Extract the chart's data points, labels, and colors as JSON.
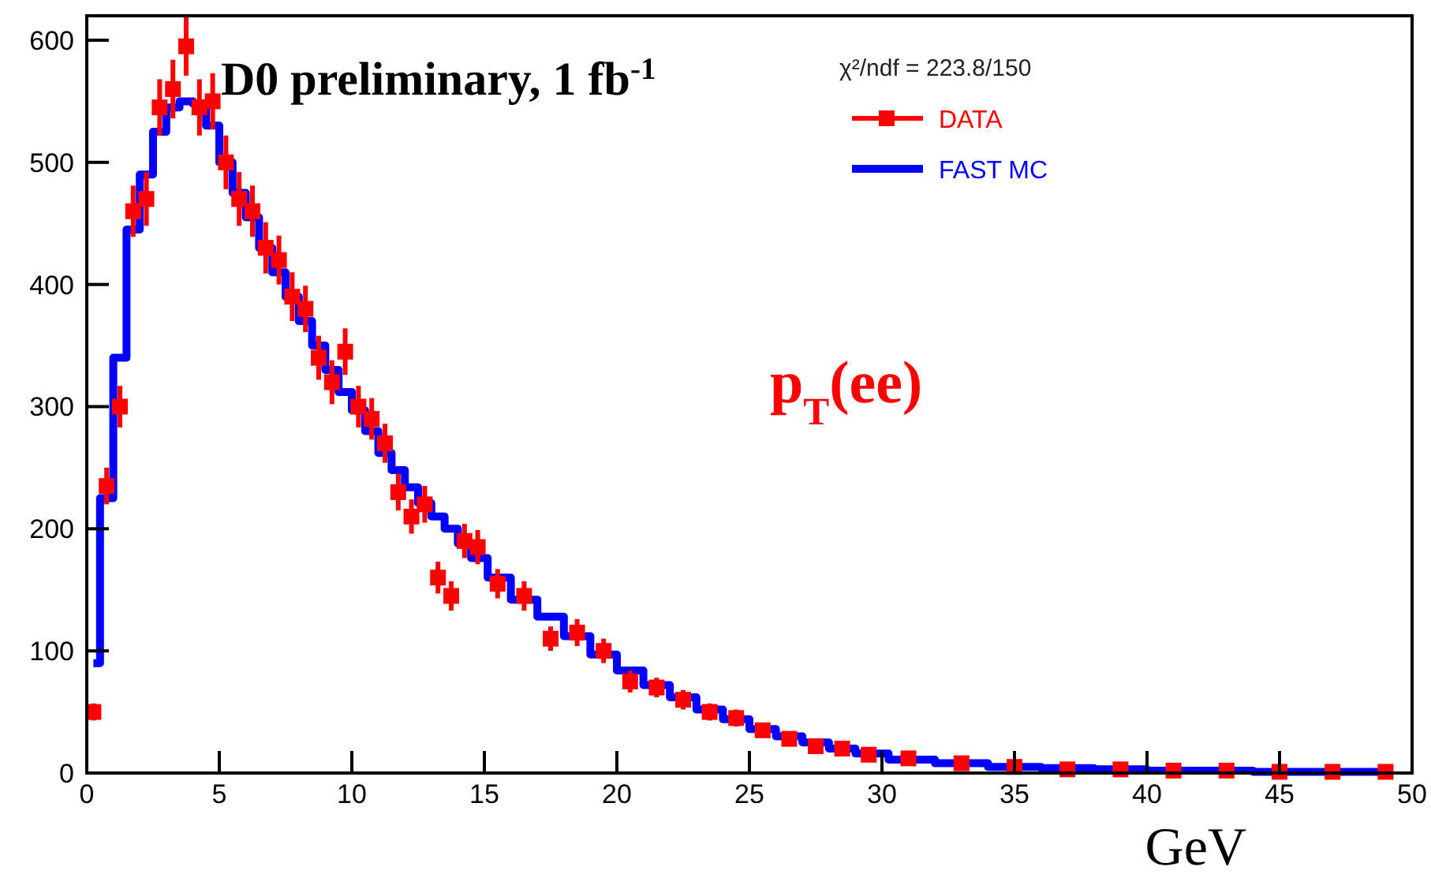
{
  "chart_data": {
    "type": "scatter",
    "title": "D0 preliminary, 1 fb$^{-1}$",
    "xlabel": "GeV",
    "annotations": [
      "χ²/ndf = 223.8/150",
      "p$_{T}$(ee)"
    ],
    "xlim": [
      0,
      50
    ],
    "xticks": [
      0,
      5,
      10,
      15,
      20,
      25,
      30,
      35,
      40,
      45,
      50
    ],
    "ylim": [
      0,
      620
    ],
    "yticks": [
      0,
      100,
      200,
      300,
      400,
      500,
      600
    ],
    "grid": false,
    "legend": "top right",
    "series": [
      {
        "name": "DATA",
        "marker": "square",
        "color": "#ff0000",
        "x": [
          0.25,
          0.75,
          1.25,
          1.75,
          2.25,
          2.75,
          3.25,
          3.75,
          4.25,
          4.75,
          5.25,
          5.75,
          6.25,
          6.75,
          7.25,
          7.75,
          8.25,
          8.75,
          9.25,
          9.75,
          10.25,
          10.75,
          11.25,
          11.75,
          12.25,
          12.75,
          13.25,
          13.75,
          14.25,
          14.75,
          15.5,
          16.5,
          17.5,
          18.5,
          19.5,
          20.5,
          21.5,
          22.5,
          23.5,
          24.5,
          25.5,
          26.5,
          27.5,
          28.5,
          29.5,
          31,
          33,
          35,
          37,
          39,
          41,
          43,
          45,
          47,
          49
        ],
        "values": [
          50,
          235,
          300,
          460,
          470,
          545,
          560,
          595,
          545,
          550,
          500,
          470,
          460,
          430,
          420,
          390,
          380,
          340,
          320,
          345,
          300,
          290,
          270,
          230,
          210,
          220,
          160,
          145,
          190,
          185,
          155,
          145,
          110,
          115,
          100,
          75,
          70,
          60,
          50,
          45,
          35,
          28,
          22,
          20,
          15,
          12,
          8,
          5,
          3,
          3,
          2,
          2,
          1,
          1,
          1
        ],
        "errors": [
          7,
          15,
          17,
          21,
          22,
          23,
          24,
          24,
          23,
          23,
          22,
          22,
          21,
          21,
          20,
          20,
          19,
          18,
          18,
          19,
          17,
          17,
          16,
          15,
          14,
          15,
          13,
          12,
          14,
          14,
          12,
          12,
          10,
          11,
          10,
          9,
          8,
          8,
          7,
          7,
          6,
          5,
          5,
          4,
          4,
          3,
          3,
          2,
          2,
          2,
          1,
          1,
          1,
          1,
          1
        ]
      },
      {
        "name": "FAST MC",
        "type": "step",
        "color": "#0000ff",
        "x": [
          0.25,
          0.75,
          1.25,
          1.75,
          2.25,
          2.75,
          3.25,
          3.75,
          4.25,
          4.75,
          5.25,
          5.75,
          6.25,
          6.75,
          7.25,
          7.75,
          8.25,
          8.75,
          9.25,
          9.75,
          10.25,
          10.75,
          11.25,
          11.75,
          12.25,
          12.75,
          13.25,
          13.75,
          14.25,
          14.75,
          15.5,
          16.5,
          17.5,
          18.5,
          19.5,
          20.5,
          21.5,
          22.5,
          23.5,
          24.5,
          25.5,
          26.5,
          27.5,
          28.5,
          29.5,
          31,
          33,
          35,
          37,
          39,
          41,
          43,
          45,
          47,
          49
        ],
        "values": [
          90,
          225,
          340,
          445,
          490,
          525,
          545,
          550,
          548,
          530,
          500,
          475,
          455,
          430,
          410,
          390,
          370,
          350,
          330,
          312,
          297,
          280,
          262,
          248,
          234,
          221,
          210,
          200,
          188,
          176,
          160,
          142,
          128,
          112,
          97,
          84,
          72,
          62,
          52,
          44,
          36,
          30,
          25,
          20,
          16,
          11,
          8,
          5,
          4,
          3,
          2,
          2,
          1,
          1,
          1
        ]
      }
    ]
  }
}
